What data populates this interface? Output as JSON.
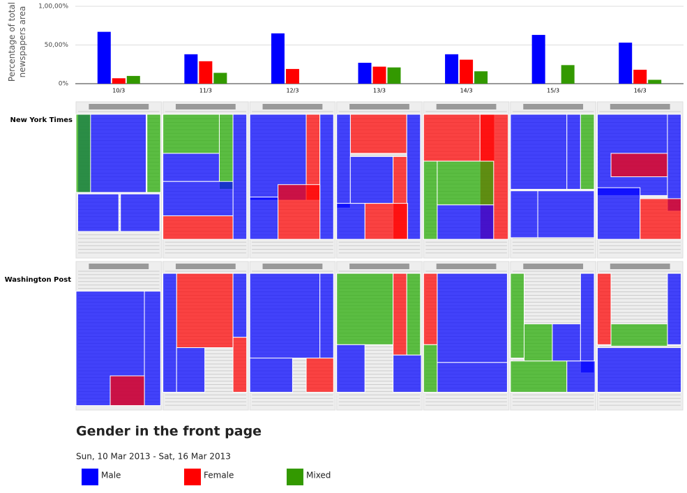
{
  "chart_data": {
    "type": "bar",
    "y_label": "Percentage of total newspapers area",
    "categories": [
      "10/3",
      "11/3",
      "12/3",
      "13/3",
      "14/3",
      "15/3",
      "16/3"
    ],
    "series": [
      {
        "name": "Male",
        "color": "#0000ff",
        "values": [
          67,
          38,
          65,
          27,
          38,
          63,
          53
        ]
      },
      {
        "name": "Female",
        "color": "#ff0000",
        "values": [
          7,
          29,
          19,
          22,
          31,
          0,
          18
        ]
      },
      {
        "name": "Mixed",
        "color": "#339900",
        "values": [
          10,
          14,
          0,
          21,
          16,
          24,
          5
        ]
      }
    ],
    "ylim": [
      0,
      100
    ],
    "yticks": [
      {
        "value": 0,
        "label": "0%"
      },
      {
        "value": 50,
        "label": "50,00%"
      },
      {
        "value": 100,
        "label": "1,00,00%"
      }
    ],
    "grid": true
  },
  "rows": [
    "New York Times",
    "Washington Post"
  ],
  "title": "Gender in the front page",
  "subtitle": "Sun, 10 Mar 2013 - Sat, 16 Mar 2013"
}
